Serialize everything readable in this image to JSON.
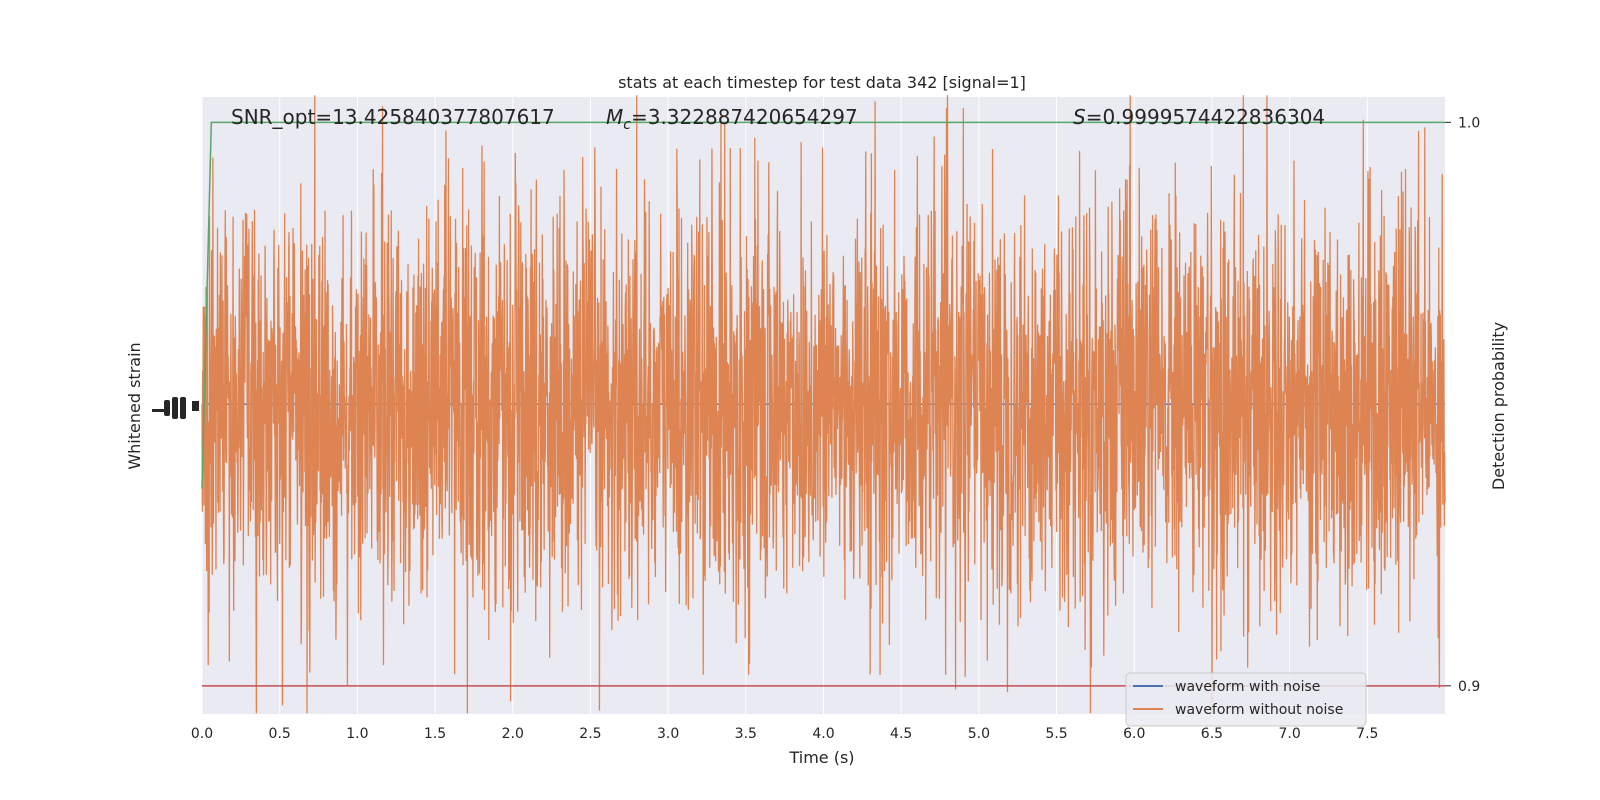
{
  "chart_data": {
    "type": "line",
    "title": "stats at each timestep for test data 342 [signal=1]",
    "xlabel": "Time (s)",
    "ylabel_left": "Whitened strain",
    "ylabel_right": "Detection probability",
    "xlim": [
      0.0,
      8.0
    ],
    "x_ticks": [
      0.0,
      0.5,
      1.0,
      1.5,
      2.0,
      2.5,
      3.0,
      3.5,
      4.0,
      4.5,
      5.0,
      5.5,
      6.0,
      6.5,
      7.0,
      7.5
    ],
    "x_tick_labels": [
      "0.0",
      "0.5",
      "1.0",
      "1.5",
      "2.0",
      "2.5",
      "3.0",
      "3.5",
      "4.0",
      "4.5",
      "5.0",
      "5.5",
      "6.0",
      "6.5",
      "7.0",
      "7.5"
    ],
    "right_axis": {
      "ylim": [
        0.895,
        1.0045
      ],
      "ticks": [
        0.9,
        1.0
      ],
      "tick_labels": [
        "0.9",
        "1.0"
      ]
    },
    "annotations": {
      "snr": "SNR_opt=13.425840377807617",
      "mc_symbol": "M",
      "mc_subscript": "c",
      "mc_value": "=3.322887420654297",
      "s_symbol": "S",
      "s_value": "=0.9999574422836304"
    },
    "series": [
      {
        "name": "waveform with noise",
        "color": "#4c72b0",
        "axis": "left",
        "x": [
          0.0,
          8.0
        ],
        "y": [
          0.0,
          0.0
        ]
      },
      {
        "name": "waveform without noise",
        "color": "#dd8452",
        "axis": "left",
        "description_of_values": "dense noise-like oscillation, amplitude ~ +/-1 (whitened units)",
        "x_range": [
          0.0,
          8.0
        ],
        "y_range": [
          -1.0,
          1.0
        ]
      },
      {
        "axis": "right",
        "color": "#55a868",
        "x": [
          0.0,
          0.06,
          0.09,
          8.0
        ],
        "y": [
          0.935,
          1.0,
          1.0,
          1.0
        ]
      },
      {
        "axis": "right",
        "color": "#c44e52",
        "x": [
          0.0,
          8.0
        ],
        "y": [
          0.9,
          0.9
        ]
      }
    ],
    "legend": {
      "placement": "lower-right",
      "entries": [
        {
          "label": "waveform with noise",
          "color": "#4c72b0"
        },
        {
          "label": "waveform without noise",
          "color": "#dd8452"
        }
      ]
    },
    "grid": true,
    "colors": {
      "axes_background": "#eaeaf2",
      "grid": "#ffffff",
      "text": "#262626"
    }
  }
}
